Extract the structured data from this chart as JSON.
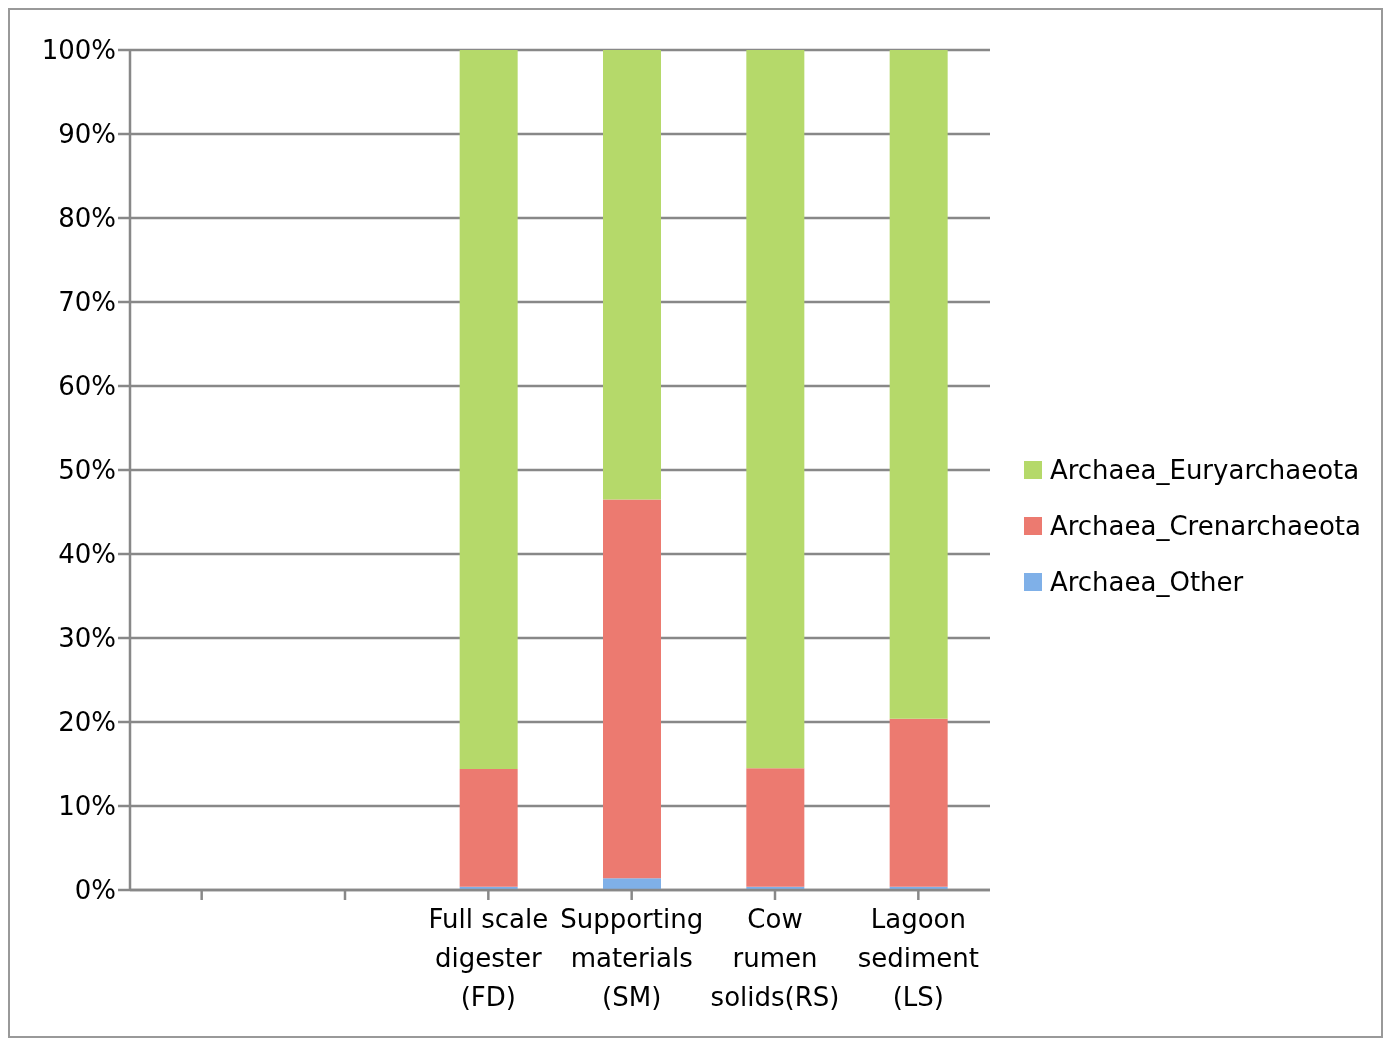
{
  "chart_data": {
    "type": "bar",
    "stacked": true,
    "categories": [
      null,
      null,
      "Full scale\ndigester\n(FD)",
      "Supporting\nmaterials\n(SM)",
      "Cow\nrumen\nsolids(RS)",
      "Lagoon\nsediment\n(LS)"
    ],
    "series": [
      {
        "name": "Archaea_Other",
        "color": "#7fb0e8",
        "values": [
          null,
          null,
          0.4,
          1.4,
          0.4,
          0.4
        ]
      },
      {
        "name": "Archaea_Crenarchaeota",
        "color": "#ec7a70",
        "values": [
          null,
          null,
          14.0,
          45.1,
          14.1,
          20.0
        ]
      },
      {
        "name": "Archaea_Euryarchaeota",
        "color": "#b5d96a",
        "values": [
          null,
          null,
          85.6,
          53.5,
          85.5,
          79.6
        ]
      }
    ],
    "ylim": [
      0,
      100
    ],
    "yticks": [
      {
        "value": 0,
        "label": "0%"
      },
      {
        "value": 10,
        "label": "10%"
      },
      {
        "value": 20,
        "label": "20%"
      },
      {
        "value": 30,
        "label": "30%"
      },
      {
        "value": 40,
        "label": "40%"
      },
      {
        "value": 50,
        "label": "50%"
      },
      {
        "value": 60,
        "label": "60%"
      },
      {
        "value": 70,
        "label": "70%"
      },
      {
        "value": 80,
        "label": "80%"
      },
      {
        "value": 90,
        "label": "90%"
      },
      {
        "value": 100,
        "label": "100%"
      }
    ],
    "grid": "y",
    "legend": "right"
  }
}
